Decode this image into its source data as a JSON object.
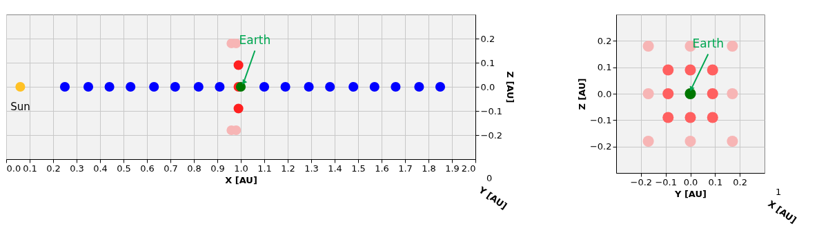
{
  "chart_data": [
    {
      "type": "scatter",
      "xlabel": "X [AU]",
      "ylabel": "Z [AU]",
      "xlim": [
        0,
        2
      ],
      "ylim": [
        -0.3,
        0.3
      ],
      "xticks": [
        {
          "value": 0,
          "label": "0.0"
        },
        0.1,
        0.2,
        0.3,
        0.4,
        0.5,
        0.6,
        0.7,
        0.8,
        0.9,
        {
          "value": 1,
          "label": "1.0"
        },
        1.1,
        1.2,
        1.3,
        1.4,
        1.5,
        1.6,
        1.7,
        1.8,
        1.9,
        {
          "value": 2,
          "label": "2.0"
        }
      ],
      "yticks": [
        -0.2,
        -0.1,
        {
          "value": 0,
          "label": "0.0"
        },
        0.1,
        0.2
      ],
      "grid": true,
      "marker": "circle",
      "series": [
        {
          "name": "Sun",
          "color": "#ffc125",
          "x": [
            0.06
          ],
          "values": [
            0
          ]
        },
        {
          "color": "#0000ff",
          "x": [
            0.25,
            0.35,
            0.44,
            0.53,
            0.63,
            0.72,
            0.82,
            0.91,
            1.1,
            1.19,
            1.29,
            1.38,
            1.48,
            1.57,
            1.66,
            1.76,
            1.85
          ],
          "values": [
            0,
            0,
            0,
            0,
            0,
            0,
            0,
            0,
            0,
            0,
            0,
            0,
            0,
            0,
            0,
            0,
            0
          ]
        },
        {
          "color": "#f7b5b5",
          "x": [
            0.96,
            0.98,
            0.96,
            0.98
          ],
          "values": [
            0.18,
            0.18,
            -0.18,
            -0.18
          ]
        },
        {
          "color": "#ff2020",
          "x": [
            0.99,
            0.99,
            0.99
          ],
          "values": [
            0.09,
            0,
            -0.09
          ]
        },
        {
          "color": "#007700",
          "x": [
            1.0
          ],
          "values": [
            0
          ]
        }
      ],
      "annotations": [
        {
          "text": "Earth",
          "x": 1.0,
          "y": 0
        },
        "0",
        "Y [AU]"
      ]
    },
    {
      "type": "scatter",
      "xlabel": "Y [AU]",
      "ylabel": "Z [AU]",
      "xlim": [
        -0.3,
        0.3
      ],
      "ylim": [
        -0.3,
        0.3
      ],
      "xticks": [
        -0.2,
        -0.1,
        {
          "value": 0,
          "label": "0.0"
        },
        0.1,
        0.2
      ],
      "yticks": [
        -0.2,
        -0.1,
        {
          "value": 0,
          "label": "0.0"
        },
        0.1,
        0.2
      ],
      "grid": true,
      "marker": "circle",
      "series": [
        {
          "color": "#f7b5b5",
          "x": [
            -0.17,
            0,
            0.17,
            -0.17,
            0.17,
            -0.17,
            0,
            0.17
          ],
          "values": [
            0.18,
            0.18,
            0.18,
            0,
            0,
            -0.18,
            -0.18,
            -0.18
          ]
        },
        {
          "color": "#ff6060",
          "x": [
            -0.09,
            0,
            0.09,
            -0.09,
            0.09,
            -0.09,
            0,
            0.09
          ],
          "values": [
            0.09,
            0.09,
            0.09,
            0,
            0,
            -0.09,
            -0.09,
            -0.09
          ]
        },
        {
          "color": "#007700",
          "x": [
            0
          ],
          "values": [
            0
          ]
        }
      ],
      "annotations": [
        {
          "text": "Earth",
          "x": 0,
          "y": 0
        },
        "1",
        "X [AU]"
      ]
    }
  ]
}
